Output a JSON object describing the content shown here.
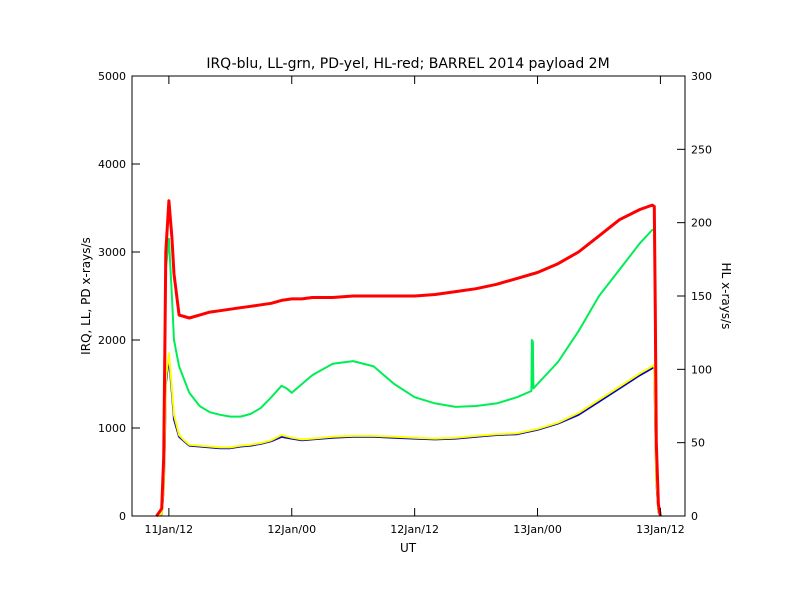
{
  "chart_data": {
    "type": "line",
    "title": "IRQ-blu, LL-grn, PD-yel, HL-red; BARREL 2014 payload 2M",
    "xlabel": "UT",
    "ylabel_left": "IRQ, LL, PD x-rays/s",
    "ylabel_right": "HL x-rays/s",
    "x_unit": "hours since 11Jan/00 UT",
    "xlim": [
      8.4,
      62.4
    ],
    "x_ticks": [
      {
        "x": 12,
        "label": "11Jan/12"
      },
      {
        "x": 24,
        "label": "12Jan/00"
      },
      {
        "x": 36,
        "label": "12Jan/12"
      },
      {
        "x": 48,
        "label": "13Jan/00"
      },
      {
        "x": 60,
        "label": "13Jan/12"
      }
    ],
    "ylim_left": [
      0,
      5000
    ],
    "y_ticks_left": [
      0,
      1000,
      2000,
      3000,
      4000,
      5000
    ],
    "ylim_right": [
      0,
      300
    ],
    "y_ticks_right": [
      0,
      50,
      100,
      150,
      200,
      250,
      300
    ],
    "grid": false,
    "legend": "in title",
    "series": [
      {
        "name": "IRQ",
        "color": "#0000cc",
        "axis": "left",
        "x": [
          10.8,
          11.3,
          11.5,
          11.6,
          11.7,
          12.0,
          12.3,
          12.5,
          13.0,
          13.5,
          14.0,
          15.0,
          16.0,
          17.0,
          18.0,
          19.0,
          20.0,
          21.0,
          22.0,
          23.0,
          24.0,
          25.0,
          26.0,
          28.0,
          30.0,
          32.0,
          34.0,
          36.0,
          38.0,
          40.0,
          42.0,
          44.0,
          46.0,
          48.0,
          50.0,
          52.0,
          54.0,
          56.0,
          58.0,
          59.2,
          59.4,
          59.5,
          59.6,
          59.8,
          60.0
        ],
        "y": [
          0,
          20,
          300,
          800,
          1500,
          1800,
          1400,
          1100,
          900,
          850,
          800,
          790,
          780,
          770,
          770,
          790,
          800,
          820,
          850,
          900,
          880,
          860,
          870,
          890,
          900,
          900,
          890,
          880,
          870,
          880,
          900,
          920,
          930,
          980,
          1050,
          1150,
          1300,
          1450,
          1600,
          1680,
          1700,
          1000,
          400,
          50,
          0
        ]
      },
      {
        "name": "LL",
        "color": "#00ee55",
        "axis": "left",
        "x": [
          10.8,
          11.3,
          11.5,
          11.6,
          11.7,
          12.0,
          12.3,
          12.5,
          13.0,
          13.5,
          14.0,
          15.0,
          16.0,
          17.0,
          18.0,
          19.0,
          20.0,
          21.0,
          22.0,
          23.0,
          23.5,
          24.0,
          25.0,
          26.0,
          28.0,
          30.0,
          32.0,
          34.0,
          36.0,
          38.0,
          40.0,
          42.0,
          44.0,
          46.0,
          47.4,
          47.45,
          47.55,
          47.6,
          48.0,
          50.0,
          52.0,
          54.0,
          56.0,
          58.0,
          59.2,
          59.4,
          59.5,
          59.6,
          59.8,
          60.0
        ],
        "y": [
          0,
          30,
          600,
          1500,
          2800,
          3150,
          2500,
          2000,
          1700,
          1550,
          1400,
          1250,
          1180,
          1150,
          1130,
          1130,
          1160,
          1230,
          1350,
          1480,
          1450,
          1400,
          1500,
          1600,
          1730,
          1760,
          1700,
          1500,
          1350,
          1280,
          1240,
          1250,
          1280,
          1350,
          1420,
          2000,
          1980,
          1450,
          1500,
          1750,
          2100,
          2500,
          2800,
          3100,
          3250,
          3260,
          1800,
          600,
          80,
          0
        ]
      },
      {
        "name": "PD",
        "color": "#ffff00",
        "axis": "left",
        "x": [
          10.8,
          11.3,
          11.5,
          11.6,
          11.7,
          12.0,
          12.3,
          12.5,
          13.0,
          13.5,
          14.0,
          15.0,
          16.0,
          17.0,
          18.0,
          19.0,
          20.0,
          21.0,
          22.0,
          23.0,
          24.0,
          25.0,
          26.0,
          28.0,
          30.0,
          32.0,
          34.0,
          36.0,
          38.0,
          40.0,
          42.0,
          44.0,
          46.0,
          48.0,
          50.0,
          52.0,
          54.0,
          56.0,
          58.0,
          59.2,
          59.4,
          59.5,
          59.6,
          59.8,
          60.0
        ],
        "y": [
          0,
          25,
          320,
          850,
          1550,
          1850,
          1450,
          1150,
          920,
          860,
          810,
          800,
          790,
          780,
          780,
          800,
          810,
          830,
          860,
          920,
          890,
          870,
          880,
          900,
          910,
          910,
          900,
          890,
          880,
          890,
          910,
          930,
          940,
          990,
          1060,
          1170,
          1320,
          1470,
          1620,
          1700,
          1720,
          1020,
          420,
          60,
          0
        ]
      },
      {
        "name": "HL",
        "color": "#ff0000",
        "axis": "right",
        "x": [
          10.8,
          11.3,
          11.5,
          11.6,
          11.7,
          12.0,
          12.3,
          12.5,
          13.0,
          13.5,
          14.0,
          15.0,
          16.0,
          17.0,
          18.0,
          19.0,
          20.0,
          21.0,
          22.0,
          23.0,
          24.0,
          25.0,
          26.0,
          28.0,
          30.0,
          32.0,
          34.0,
          36.0,
          38.0,
          40.0,
          42.0,
          44.0,
          46.0,
          48.0,
          50.0,
          52.0,
          54.0,
          56.0,
          58.0,
          59.2,
          59.4,
          59.5,
          59.6,
          59.8,
          60.0
        ],
        "y": [
          0,
          5,
          40,
          110,
          180,
          215,
          190,
          165,
          137,
          136,
          135,
          137,
          139,
          140,
          141,
          142,
          143,
          144,
          145,
          147,
          148,
          148,
          149,
          149,
          150,
          150,
          150,
          150,
          151,
          153,
          155,
          158,
          162,
          166,
          172,
          180,
          191,
          202,
          209,
          212,
          211,
          140,
          50,
          8,
          0
        ]
      }
    ]
  }
}
